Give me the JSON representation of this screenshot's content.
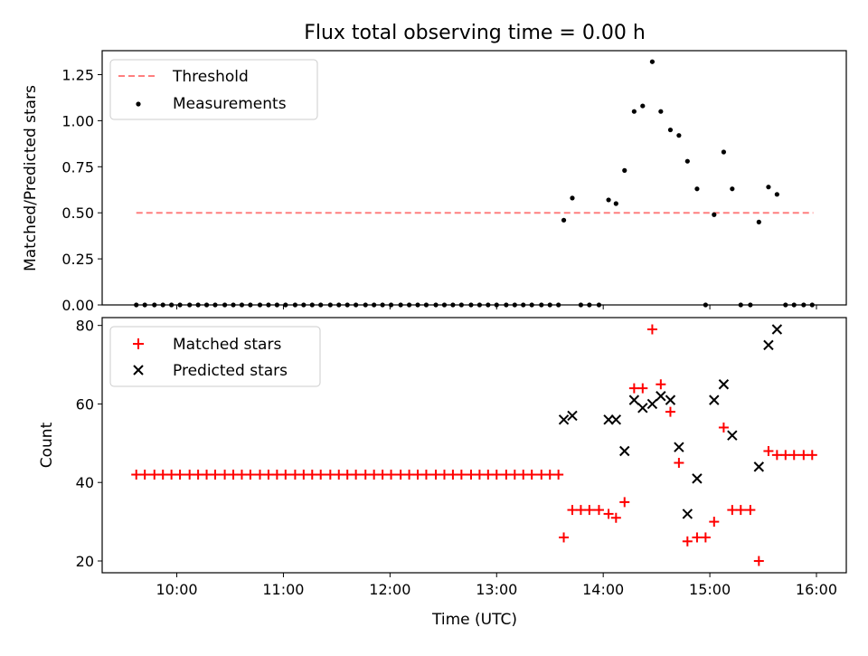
{
  "chart_data": [
    {
      "type": "scatter",
      "title": "Flux total observing time = 0.00 h",
      "ylabel": "Matched/Predicted stars",
      "ylim": [
        0,
        1.38
      ],
      "xlim": [
        9.3,
        16.28
      ],
      "yticks": [
        0.0,
        0.25,
        0.5,
        0.75,
        1.0,
        1.25
      ],
      "ytick_labels": [
        "0.00",
        "0.25",
        "0.50",
        "0.75",
        "1.00",
        "1.25"
      ],
      "xticks": [
        10,
        11,
        12,
        13,
        14,
        15,
        16
      ],
      "legend_position": "upper-left",
      "threshold": {
        "name": "Threshold",
        "value": 0.5,
        "x_range": [
          9.62,
          15.97
        ],
        "color": "#ff7f7f",
        "style": "dashed"
      },
      "series": [
        {
          "name": "Measurements",
          "marker": "dot",
          "color": "#000000",
          "points": [
            [
              9.62,
              0.0
            ],
            [
              9.7,
              0.0
            ],
            [
              9.79,
              0.0
            ],
            [
              9.87,
              0.0
            ],
            [
              9.95,
              0.0
            ],
            [
              10.03,
              0.0
            ],
            [
              10.12,
              0.0
            ],
            [
              10.2,
              0.0
            ],
            [
              10.28,
              0.0
            ],
            [
              10.36,
              0.0
            ],
            [
              10.45,
              0.0
            ],
            [
              10.53,
              0.0
            ],
            [
              10.61,
              0.0
            ],
            [
              10.69,
              0.0
            ],
            [
              10.78,
              0.0
            ],
            [
              10.86,
              0.0
            ],
            [
              10.94,
              0.0
            ],
            [
              11.02,
              0.0
            ],
            [
              11.11,
              0.0
            ],
            [
              11.19,
              0.0
            ],
            [
              11.27,
              0.0
            ],
            [
              11.35,
              0.0
            ],
            [
              11.44,
              0.0
            ],
            [
              11.52,
              0.0
            ],
            [
              11.6,
              0.0
            ],
            [
              11.68,
              0.0
            ],
            [
              11.77,
              0.0
            ],
            [
              11.85,
              0.0
            ],
            [
              11.93,
              0.0
            ],
            [
              12.01,
              0.0
            ],
            [
              12.1,
              0.0
            ],
            [
              12.18,
              0.0
            ],
            [
              12.26,
              0.0
            ],
            [
              12.34,
              0.0
            ],
            [
              12.43,
              0.0
            ],
            [
              12.51,
              0.0
            ],
            [
              12.59,
              0.0
            ],
            [
              12.67,
              0.0
            ],
            [
              12.76,
              0.0
            ],
            [
              12.84,
              0.0
            ],
            [
              12.92,
              0.0
            ],
            [
              13.0,
              0.0
            ],
            [
              13.09,
              0.0
            ],
            [
              13.17,
              0.0
            ],
            [
              13.25,
              0.0
            ],
            [
              13.33,
              0.0
            ],
            [
              13.42,
              0.0
            ],
            [
              13.5,
              0.0
            ],
            [
              13.58,
              0.0
            ],
            [
              13.63,
              0.46
            ],
            [
              13.71,
              0.58
            ],
            [
              13.79,
              0.0
            ],
            [
              13.87,
              0.0
            ],
            [
              13.96,
              0.0
            ],
            [
              14.05,
              0.57
            ],
            [
              14.12,
              0.55
            ],
            [
              14.2,
              0.73
            ],
            [
              14.29,
              1.05
            ],
            [
              14.37,
              1.08
            ],
            [
              14.46,
              1.32
            ],
            [
              14.54,
              1.05
            ],
            [
              14.63,
              0.95
            ],
            [
              14.71,
              0.92
            ],
            [
              14.79,
              0.78
            ],
            [
              14.88,
              0.63
            ],
            [
              14.96,
              0.0
            ],
            [
              15.04,
              0.49
            ],
            [
              15.13,
              0.83
            ],
            [
              15.21,
              0.63
            ],
            [
              15.29,
              0.0
            ],
            [
              15.38,
              0.0
            ],
            [
              15.46,
              0.45
            ],
            [
              15.55,
              0.64
            ],
            [
              15.63,
              0.6
            ],
            [
              15.71,
              0.0
            ],
            [
              15.79,
              0.0
            ],
            [
              15.88,
              0.0
            ],
            [
              15.96,
              0.0
            ]
          ]
        }
      ]
    },
    {
      "type": "scatter",
      "ylabel": "Count",
      "xlabel": "Time (UTC)",
      "ylim": [
        17,
        82
      ],
      "xlim": [
        9.3,
        16.28
      ],
      "yticks": [
        20,
        40,
        60,
        80
      ],
      "ytick_labels": [
        "20",
        "40",
        "60",
        "80"
      ],
      "xticks": [
        10,
        11,
        12,
        13,
        14,
        15,
        16
      ],
      "xtick_labels": [
        "10:00",
        "11:00",
        "12:00",
        "13:00",
        "14:00",
        "15:00",
        "16:00"
      ],
      "legend_position": "upper-left",
      "series": [
        {
          "name": "Matched stars",
          "marker": "plus",
          "color": "#ff0000",
          "points": [
            [
              9.62,
              42
            ],
            [
              9.7,
              42
            ],
            [
              9.79,
              42
            ],
            [
              9.87,
              42
            ],
            [
              9.95,
              42
            ],
            [
              10.03,
              42
            ],
            [
              10.12,
              42
            ],
            [
              10.2,
              42
            ],
            [
              10.28,
              42
            ],
            [
              10.36,
              42
            ],
            [
              10.45,
              42
            ],
            [
              10.53,
              42
            ],
            [
              10.61,
              42
            ],
            [
              10.69,
              42
            ],
            [
              10.78,
              42
            ],
            [
              10.86,
              42
            ],
            [
              10.94,
              42
            ],
            [
              11.02,
              42
            ],
            [
              11.11,
              42
            ],
            [
              11.19,
              42
            ],
            [
              11.27,
              42
            ],
            [
              11.35,
              42
            ],
            [
              11.44,
              42
            ],
            [
              11.52,
              42
            ],
            [
              11.6,
              42
            ],
            [
              11.68,
              42
            ],
            [
              11.77,
              42
            ],
            [
              11.85,
              42
            ],
            [
              11.93,
              42
            ],
            [
              12.01,
              42
            ],
            [
              12.1,
              42
            ],
            [
              12.18,
              42
            ],
            [
              12.26,
              42
            ],
            [
              12.34,
              42
            ],
            [
              12.43,
              42
            ],
            [
              12.51,
              42
            ],
            [
              12.59,
              42
            ],
            [
              12.67,
              42
            ],
            [
              12.76,
              42
            ],
            [
              12.84,
              42
            ],
            [
              12.92,
              42
            ],
            [
              13.0,
              42
            ],
            [
              13.09,
              42
            ],
            [
              13.17,
              42
            ],
            [
              13.25,
              42
            ],
            [
              13.33,
              42
            ],
            [
              13.42,
              42
            ],
            [
              13.5,
              42
            ],
            [
              13.58,
              42
            ],
            [
              13.63,
              26
            ],
            [
              13.71,
              33
            ],
            [
              13.79,
              33
            ],
            [
              13.87,
              33
            ],
            [
              13.96,
              33
            ],
            [
              14.05,
              32
            ],
            [
              14.12,
              31
            ],
            [
              14.2,
              35
            ],
            [
              14.29,
              64
            ],
            [
              14.37,
              64
            ],
            [
              14.46,
              79
            ],
            [
              14.54,
              65
            ],
            [
              14.63,
              58
            ],
            [
              14.71,
              45
            ],
            [
              14.79,
              25
            ],
            [
              14.88,
              26
            ],
            [
              14.96,
              26
            ],
            [
              15.04,
              30
            ],
            [
              15.13,
              54
            ],
            [
              15.21,
              33
            ],
            [
              15.29,
              33
            ],
            [
              15.38,
              33
            ],
            [
              15.46,
              20
            ],
            [
              15.55,
              48
            ],
            [
              15.63,
              47
            ],
            [
              15.71,
              47
            ],
            [
              15.79,
              47
            ],
            [
              15.88,
              47
            ],
            [
              15.96,
              47
            ]
          ]
        },
        {
          "name": "Predicted stars",
          "marker": "x",
          "color": "#000000",
          "points": [
            [
              13.63,
              56
            ],
            [
              13.71,
              57
            ],
            [
              14.05,
              56
            ],
            [
              14.12,
              56
            ],
            [
              14.2,
              48
            ],
            [
              14.29,
              61
            ],
            [
              14.37,
              59
            ],
            [
              14.46,
              60
            ],
            [
              14.54,
              62
            ],
            [
              14.63,
              61
            ],
            [
              14.71,
              49
            ],
            [
              14.79,
              32
            ],
            [
              14.88,
              41
            ],
            [
              15.04,
              61
            ],
            [
              15.13,
              65
            ],
            [
              15.21,
              52
            ],
            [
              15.46,
              44
            ],
            [
              15.55,
              75
            ],
            [
              15.63,
              79
            ]
          ]
        }
      ]
    }
  ]
}
